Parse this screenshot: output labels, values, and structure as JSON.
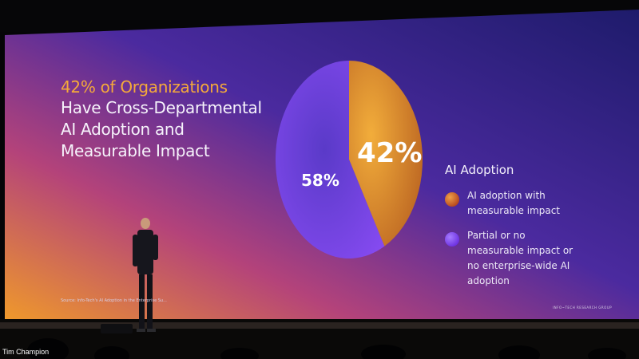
{
  "slide": {
    "title_highlight": "42% of Organizations",
    "title_rest": "Have Cross-Departmental AI Adoption and Measurable Impact",
    "source": "Source: Info-Tech's AI Adoption in the Enterprise Su...",
    "brand": "INFO~TECH RESEARCH GROUP"
  },
  "video": {
    "speaker_caption": "Tim Champion"
  },
  "chart_data": {
    "type": "pie",
    "title": "",
    "legend_title": "AI Adoption",
    "legend_position": "right",
    "slices": [
      {
        "label": "AI adoption with measurable impact",
        "value": 42,
        "value_label": "42%",
        "color": "#e89a2c"
      },
      {
        "label": "Partial or no measurable impact or no enterprise-wide AI adoption",
        "value": 58,
        "value_label": "58%",
        "color": "#7c3cf0"
      }
    ]
  }
}
